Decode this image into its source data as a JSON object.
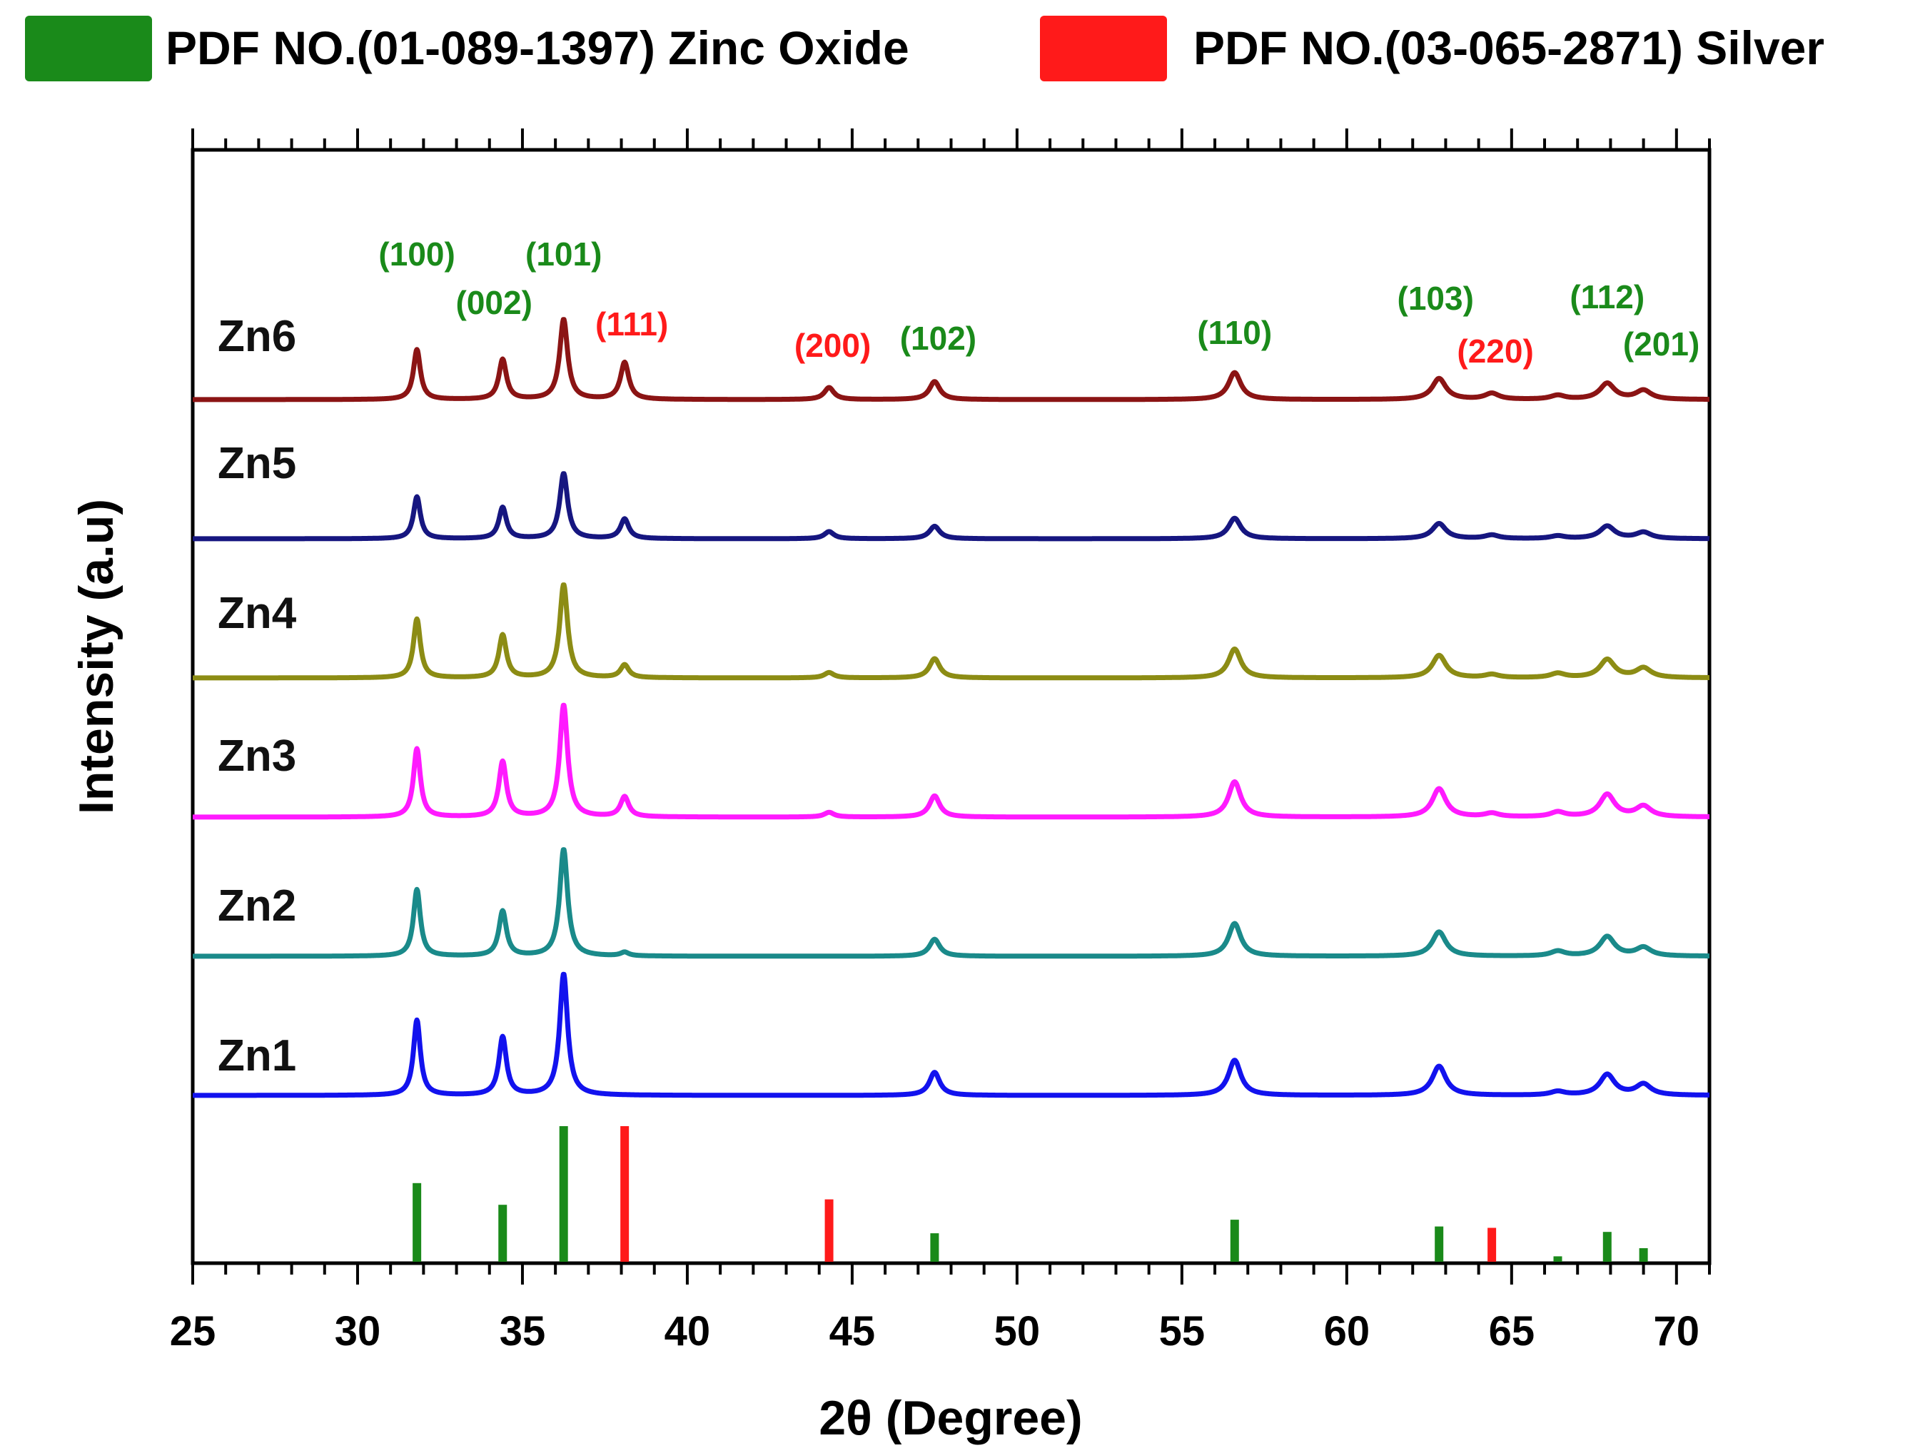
{
  "chart_data": {
    "type": "line",
    "title": "",
    "xlabel": "2θ (Degree)",
    "ylabel": "Intensity (a.u)",
    "xlim": [
      25,
      71
    ],
    "xticks": [
      "25",
      "30",
      "35",
      "40",
      "45",
      "50",
      "55",
      "60",
      "65",
      "70"
    ],
    "xtick_values": [
      25,
      30,
      35,
      40,
      45,
      50,
      55,
      60,
      65,
      70
    ],
    "legend": [
      {
        "label": "PDF NO.(01-089-1397) Zinc Oxide",
        "color": "#1a8a1a"
      },
      {
        "label": "PDF NO.(03-065-2871) Silver",
        "color": "#ff1a1a"
      }
    ],
    "reference_peaks": [
      {
        "x": 31.8,
        "intensity": 58,
        "phase": "ZnO"
      },
      {
        "x": 34.4,
        "intensity": 42,
        "phase": "ZnO"
      },
      {
        "x": 36.25,
        "intensity": 100,
        "phase": "ZnO"
      },
      {
        "x": 38.1,
        "intensity": 100,
        "phase": "Ag"
      },
      {
        "x": 44.3,
        "intensity": 46,
        "phase": "Ag"
      },
      {
        "x": 47.5,
        "intensity": 21,
        "phase": "ZnO"
      },
      {
        "x": 56.6,
        "intensity": 31,
        "phase": "ZnO"
      },
      {
        "x": 62.8,
        "intensity": 26,
        "phase": "ZnO"
      },
      {
        "x": 64.4,
        "intensity": 25,
        "phase": "Ag"
      },
      {
        "x": 66.4,
        "intensity": 4,
        "phase": "ZnO"
      },
      {
        "x": 67.9,
        "intensity": 22,
        "phase": "ZnO"
      },
      {
        "x": 69.0,
        "intensity": 10,
        "phase": "ZnO"
      }
    ],
    "series": [
      {
        "name": "Zn1",
        "color": "#1212ee",
        "peaks": [
          [
            31.8,
            62
          ],
          [
            34.4,
            48
          ],
          [
            36.25,
            100
          ],
          [
            47.5,
            19
          ],
          [
            56.6,
            29
          ],
          [
            62.8,
            24
          ],
          [
            66.4,
            3
          ],
          [
            67.9,
            17
          ],
          [
            69.0,
            9
          ]
        ]
      },
      {
        "name": "Zn2",
        "color": "#1a8a8a",
        "peaks": [
          [
            31.8,
            55
          ],
          [
            34.4,
            37
          ],
          [
            36.25,
            88
          ],
          [
            38.1,
            3
          ],
          [
            47.5,
            14
          ],
          [
            56.6,
            27
          ],
          [
            62.8,
            20
          ],
          [
            66.4,
            4
          ],
          [
            67.9,
            16
          ],
          [
            69.0,
            7
          ]
        ]
      },
      {
        "name": "Zn3",
        "color": "#ff1aff",
        "peaks": [
          [
            31.8,
            58
          ],
          [
            34.4,
            47
          ],
          [
            36.25,
            95
          ],
          [
            38.1,
            17
          ],
          [
            44.3,
            4
          ],
          [
            47.5,
            18
          ],
          [
            56.6,
            30
          ],
          [
            62.8,
            24
          ],
          [
            64.4,
            3
          ],
          [
            66.4,
            4
          ],
          [
            67.9,
            19
          ],
          [
            69.0,
            9
          ]
        ]
      },
      {
        "name": "Zn4",
        "color": "#8c8c14",
        "peaks": [
          [
            31.8,
            55
          ],
          [
            34.4,
            40
          ],
          [
            36.25,
            87
          ],
          [
            38.1,
            12
          ],
          [
            44.3,
            5
          ],
          [
            47.5,
            18
          ],
          [
            56.6,
            27
          ],
          [
            62.8,
            21
          ],
          [
            64.4,
            3
          ],
          [
            66.4,
            4
          ],
          [
            67.9,
            17
          ],
          [
            69.0,
            9
          ]
        ]
      },
      {
        "name": "Zn5",
        "color": "#161680",
        "peaks": [
          [
            31.8,
            47
          ],
          [
            34.4,
            35
          ],
          [
            36.25,
            73
          ],
          [
            38.1,
            22
          ],
          [
            44.3,
            8
          ],
          [
            47.5,
            14
          ],
          [
            56.6,
            23
          ],
          [
            62.8,
            17
          ],
          [
            64.4,
            4
          ],
          [
            66.4,
            3
          ],
          [
            67.9,
            14
          ],
          [
            69.0,
            7
          ]
        ]
      },
      {
        "name": "Zn6",
        "color": "#8b1414",
        "peaks": [
          [
            31.8,
            50
          ],
          [
            34.4,
            40
          ],
          [
            36.25,
            80
          ],
          [
            38.1,
            37
          ],
          [
            44.3,
            12
          ],
          [
            47.5,
            18
          ],
          [
            56.6,
            27
          ],
          [
            62.8,
            21
          ],
          [
            64.4,
            6
          ],
          [
            66.4,
            4
          ],
          [
            67.9,
            16
          ],
          [
            69.0,
            9
          ]
        ]
      }
    ],
    "annotations": [
      {
        "text": "(100)",
        "x": 31.8,
        "color": "#1a8a1a"
      },
      {
        "text": "(002)",
        "x": 34.4,
        "color": "#1a8a1a"
      },
      {
        "text": "(101)",
        "x": 36.25,
        "color": "#1a8a1a"
      },
      {
        "text": "(111)",
        "x": 38.1,
        "color": "#ff1a1a"
      },
      {
        "text": "(200)",
        "x": 44.3,
        "color": "#ff1a1a"
      },
      {
        "text": "(102)",
        "x": 47.5,
        "color": "#1a8a1a"
      },
      {
        "text": "(110)",
        "x": 56.6,
        "color": "#1a8a1a"
      },
      {
        "text": "(103)",
        "x": 62.8,
        "color": "#1a8a1a"
      },
      {
        "text": "(220)",
        "x": 64.4,
        "color": "#ff1a1a"
      },
      {
        "text": "(112)",
        "x": 67.9,
        "color": "#1a8a1a"
      },
      {
        "text": "(201)",
        "x": 69.0,
        "color": "#1a8a1a"
      }
    ],
    "grid": false,
    "legend_position": "top"
  }
}
